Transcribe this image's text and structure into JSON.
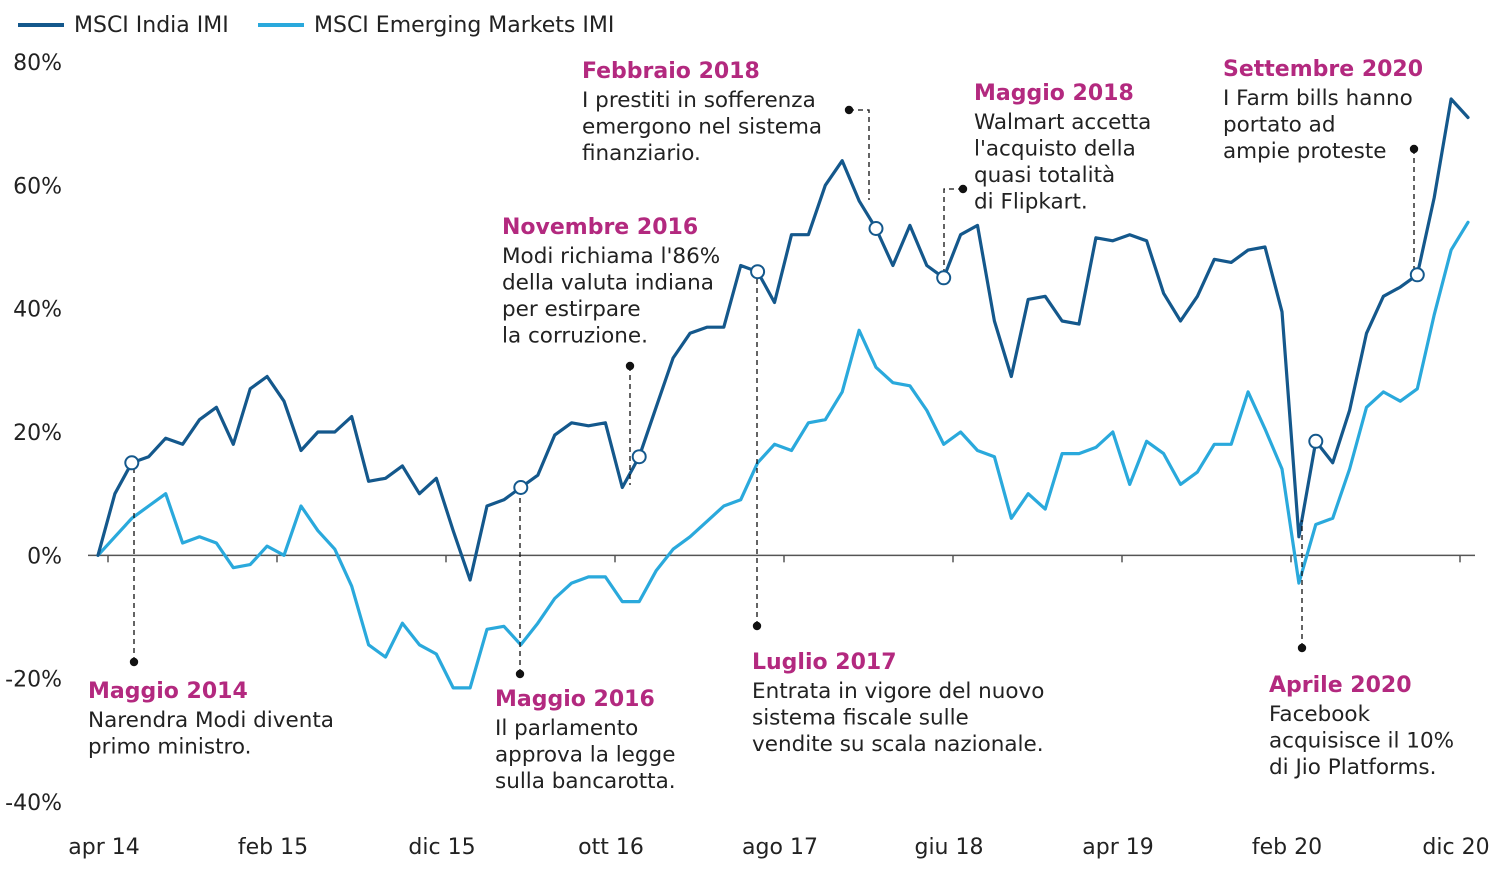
{
  "chart_data": {
    "type": "line",
    "title": "",
    "xlabel": "",
    "ylabel": "",
    "ylim": [
      -40,
      80
    ],
    "yticks": [
      80,
      60,
      40,
      20,
      0,
      -20,
      -40
    ],
    "ytick_labels": [
      "80%",
      "60%",
      "40%",
      "20%",
      "0%",
      "-20%",
      "-40%"
    ],
    "xtick_labels": [
      "apr 14",
      "feb 15",
      "dic 15",
      "ott 16",
      "ago 17",
      "giu 18",
      "apr 19",
      "feb 20",
      "dic 20"
    ],
    "x_start_label": "apr 14",
    "colors": {
      "india": "#14588c",
      "em": "#2aa9dc",
      "annotation": "#b3297f",
      "axis": "#555555"
    },
    "series": [
      {
        "name": "MSCI India IMI",
        "values": [
          0,
          10,
          15,
          16,
          19,
          18,
          22,
          24,
          18,
          27,
          29,
          25,
          17,
          20,
          20,
          22.5,
          12,
          12.5,
          14.5,
          10,
          12.5,
          4,
          -4,
          8,
          9,
          11,
          13,
          19.5,
          21.5,
          21,
          21.5,
          11,
          16,
          24,
          32,
          36,
          37,
          37,
          47,
          46,
          41,
          52,
          52,
          60,
          64,
          57.5,
          53,
          47,
          53.5,
          47,
          45,
          52,
          53.5,
          38,
          29,
          41.5,
          42,
          38,
          37.5,
          51.5,
          51,
          52,
          51,
          42.5,
          38,
          42,
          48,
          47.5,
          49.5,
          50,
          39.5,
          3,
          18.5,
          15,
          23.5,
          36,
          42,
          43.5,
          45.5,
          58,
          74,
          71
        ]
      },
      {
        "name": "MSCI Emerging Markets IMI",
        "values": [
          0,
          3,
          6,
          8,
          10,
          2,
          3,
          2,
          -2,
          -1.5,
          1.5,
          0,
          8,
          4,
          1,
          -5,
          -14.5,
          -16.5,
          -11,
          -14.5,
          -16,
          -21.5,
          -21.5,
          -12,
          -11.5,
          -14.5,
          -11,
          -7,
          -4.5,
          -3.5,
          -3.5,
          -7.5,
          -7.5,
          -2.5,
          1,
          3,
          5.5,
          8,
          9,
          15,
          18,
          17,
          21.5,
          22,
          26.5,
          36.5,
          30.5,
          28,
          27.5,
          23.5,
          18,
          20,
          17,
          16,
          6,
          10,
          7.5,
          16.5,
          16.5,
          17.5,
          20,
          11.5,
          18.5,
          16.5,
          11.5,
          13.5,
          18,
          18,
          26.5,
          20.5,
          14,
          -4.5,
          5,
          6,
          14,
          24,
          26.5,
          25,
          27,
          39,
          49.5,
          54
        ]
      }
    ],
    "annotations": [
      {
        "title": "Maggio 2014",
        "lines": [
          "Narendra Modi diventa",
          "primo ministro."
        ]
      },
      {
        "title": "Maggio 2016",
        "lines": [
          "Il parlamento",
          "approva la legge",
          "sulla bancarotta."
        ]
      },
      {
        "title": "Novembre 2016",
        "lines": [
          "Modi richiama l'86%",
          "della valuta indiana",
          "per estirpare",
          "la corruzione."
        ]
      },
      {
        "title": "Luglio 2017",
        "lines": [
          "Entrata in vigore del nuovo",
          "sistema fiscale sulle",
          "vendite su scala nazionale."
        ]
      },
      {
        "title": "Febbraio 2018",
        "lines": [
          "I prestiti in sofferenza",
          "emergono nel sistema",
          "finanziario."
        ]
      },
      {
        "title": "Maggio 2018",
        "lines": [
          "Walmart accetta",
          "l'acquisto della",
          "quasi totalità",
          "di Flipkart."
        ]
      },
      {
        "title": "Aprile 2020",
        "lines": [
          "Facebook",
          "acquisisce il 10%",
          "di Jio Platforms."
        ]
      },
      {
        "title": "Settembre 2020",
        "lines": [
          "I Farm bills hanno",
          "portato ad",
          "ampie proteste"
        ]
      }
    ]
  }
}
